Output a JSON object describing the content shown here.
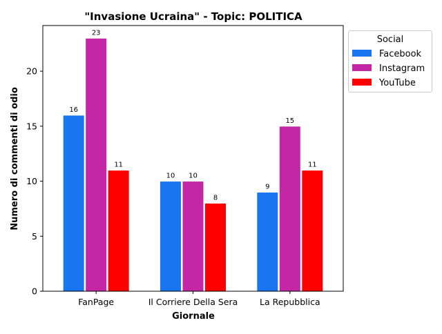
{
  "chart_data": {
    "type": "bar",
    "title": "\"Invasione Ucraina\" - Topic: POLITICA",
    "xlabel": "Giornale",
    "ylabel": "Numero di commenti di odio",
    "categories": [
      "FanPage",
      "Il Corriere Della Sera",
      "La Repubblica"
    ],
    "series": [
      {
        "name": "Facebook",
        "color": "#1a75f0",
        "values": [
          16,
          10,
          9
        ]
      },
      {
        "name": "Instagram",
        "color": "#c427a6",
        "values": [
          23,
          10,
          15
        ]
      },
      {
        "name": "YouTube",
        "color": "#ff0000",
        "values": [
          11,
          8,
          11
        ]
      }
    ],
    "ylim": [
      0,
      24.15
    ],
    "yticks": [
      0,
      5,
      10,
      15,
      20
    ],
    "grid": false,
    "legend": {
      "title": "Social",
      "placement": "outside-top-right"
    },
    "data_labels": true
  }
}
